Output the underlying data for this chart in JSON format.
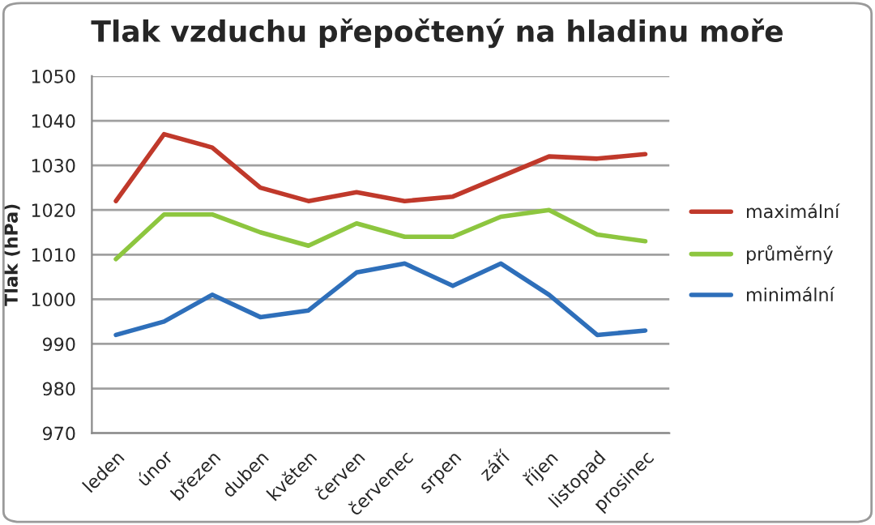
{
  "chart_data": {
    "type": "line",
    "title": "Tlak vzduchu přepočtený na hladinu moře",
    "ylabel": "Tlak (hPa)",
    "categories": [
      "leden",
      "únor",
      "březen",
      "duben",
      "květen",
      "červen",
      "červenec",
      "srpen",
      "září",
      "říjen",
      "listopad",
      "prosinec"
    ],
    "series": [
      {
        "name": "maximální",
        "color": "#c0392b",
        "values": [
          1022,
          1037,
          1034,
          1025,
          1022,
          1024,
          1022,
          1023,
          1027.5,
          1032,
          1031.5,
          1032.5
        ]
      },
      {
        "name": "průměrný",
        "color": "#8dc63f",
        "values": [
          1009,
          1019,
          1019,
          1015,
          1012,
          1017,
          1014,
          1014,
          1018.5,
          1020,
          1014.5,
          1013
        ]
      },
      {
        "name": "minimální",
        "color": "#2e6fba",
        "values": [
          992,
          995,
          1001,
          996,
          997.5,
          1006,
          1008,
          1003,
          1008,
          1001,
          992,
          993
        ]
      }
    ],
    "ylim": [
      970,
      1050
    ],
    "yticks": [
      970,
      980,
      990,
      1000,
      1010,
      1020,
      1030,
      1040,
      1050
    ],
    "grid": "y",
    "legend": "right",
    "marker": "none",
    "line_style": "solid"
  }
}
